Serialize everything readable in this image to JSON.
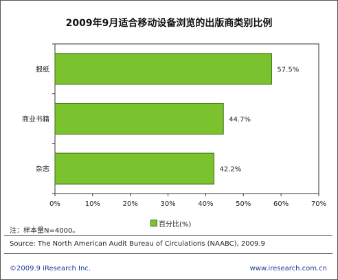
{
  "chart_data": {
    "type": "bar",
    "orientation": "horizontal",
    "title": "2009年9月适合移动设备浏览的出版商类别比例",
    "categories": [
      "报纸",
      "商业书籍",
      "杂志"
    ],
    "series": [
      {
        "name": "百分比(%)",
        "values": [
          57.5,
          44.7,
          42.2
        ]
      }
    ],
    "data_labels": [
      "57.5%",
      "44.7%",
      "42.2%"
    ],
    "x_ticks": [
      "0%",
      "10%",
      "20%",
      "30%",
      "40%",
      "50%",
      "60%",
      "70%"
    ],
    "xlim": [
      0,
      70
    ],
    "grid": false,
    "legend_position": "bottom",
    "bar_color": "#7ac32e",
    "bar_border_color": "#3f6b12"
  },
  "note": "注：样本量N=4000。",
  "source": "Source:  The North American Audit Bureau of Circulations (NAABC), 2009.9",
  "footer": {
    "copyright": "©2009.9  iResearch Inc.",
    "website": "www.iresearch.com.cn"
  }
}
